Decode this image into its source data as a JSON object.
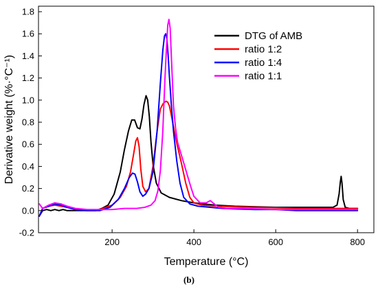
{
  "chart_data": {
    "type": "line",
    "title": "",
    "xlabel": "Temperature (°C)",
    "ylabel": "Derivative weight  (%·°C⁻¹)",
    "xlim": [
      20,
      840
    ],
    "ylim": [
      -0.2,
      1.85
    ],
    "xticks": [
      200,
      400,
      600,
      800
    ],
    "xtick_labels": [
      "200",
      "400",
      "600",
      "800"
    ],
    "yticks": [
      -0.2,
      0.0,
      0.2,
      0.4,
      0.6,
      0.8,
      1.0,
      1.2,
      1.4,
      1.6,
      1.8
    ],
    "ytick_labels": [
      "-0.2",
      "0.0",
      "0.2",
      "0.4",
      "0.6",
      "0.8",
      "1.0",
      "1.2",
      "1.4",
      "1.6",
      "1.8"
    ],
    "grid": false,
    "legend_position": "top-right",
    "caption": "(b)",
    "series": [
      {
        "name": "DTG of AMB",
        "color": "#000000",
        "x": [
          22,
          30,
          40,
          50,
          60,
          70,
          80,
          90,
          100,
          120,
          140,
          160,
          175,
          190,
          205,
          220,
          230,
          240,
          248,
          255,
          262,
          268,
          273,
          278,
          283,
          287,
          291,
          295,
          300,
          308,
          320,
          340,
          370,
          400,
          450,
          500,
          550,
          600,
          650,
          700,
          740,
          750,
          755,
          758,
          760,
          762,
          765,
          770,
          780,
          800
        ],
        "y": [
          -0.05,
          0.0,
          0.01,
          0.0,
          0.01,
          0.0,
          0.01,
          0.0,
          0.0,
          0.0,
          0.0,
          0.0,
          0.02,
          0.05,
          0.15,
          0.35,
          0.55,
          0.72,
          0.82,
          0.82,
          0.75,
          0.74,
          0.83,
          0.96,
          1.04,
          1.0,
          0.85,
          0.62,
          0.42,
          0.25,
          0.16,
          0.12,
          0.09,
          0.07,
          0.05,
          0.04,
          0.035,
          0.03,
          0.03,
          0.03,
          0.03,
          0.05,
          0.15,
          0.26,
          0.31,
          0.25,
          0.1,
          0.03,
          0.02,
          0.02
        ]
      },
      {
        "name": "ratio 1:2",
        "color": "#ff0000",
        "x": [
          22,
          30,
          45,
          60,
          75,
          90,
          110,
          140,
          170,
          200,
          220,
          235,
          245,
          252,
          258,
          262,
          266,
          270,
          275,
          282,
          290,
          300,
          310,
          318,
          325,
          332,
          336,
          340,
          345,
          352,
          360,
          370,
          380,
          390,
          400,
          420,
          440,
          460,
          500,
          550,
          600,
          650,
          700,
          750,
          800
        ],
        "y": [
          -0.05,
          0.02,
          0.04,
          0.05,
          0.04,
          0.03,
          0.01,
          0.0,
          0.01,
          0.05,
          0.12,
          0.22,
          0.35,
          0.5,
          0.63,
          0.66,
          0.58,
          0.38,
          0.22,
          0.17,
          0.2,
          0.4,
          0.72,
          0.92,
          0.97,
          0.99,
          0.98,
          0.95,
          0.86,
          0.72,
          0.58,
          0.42,
          0.25,
          0.12,
          0.07,
          0.05,
          0.045,
          0.04,
          0.035,
          0.03,
          0.025,
          0.02,
          0.02,
          0.02,
          0.02
        ]
      },
      {
        "name": "ratio 1:4",
        "color": "#0000ff",
        "x": [
          22,
          30,
          45,
          60,
          75,
          90,
          110,
          140,
          170,
          195,
          215,
          230,
          242,
          250,
          256,
          262,
          268,
          275,
          282,
          290,
          300,
          310,
          318,
          324,
          328,
          331,
          334,
          337,
          340,
          345,
          350,
          358,
          366,
          375,
          390,
          410,
          440,
          470,
          500,
          550,
          600,
          650,
          700,
          750,
          800
        ],
        "y": [
          -0.05,
          0.02,
          0.04,
          0.06,
          0.05,
          0.03,
          0.01,
          0.0,
          0.0,
          0.03,
          0.1,
          0.2,
          0.3,
          0.34,
          0.33,
          0.26,
          0.17,
          0.13,
          0.15,
          0.2,
          0.35,
          0.72,
          1.15,
          1.45,
          1.58,
          1.6,
          1.55,
          1.4,
          1.22,
          0.95,
          0.72,
          0.45,
          0.25,
          0.12,
          0.06,
          0.04,
          0.03,
          0.02,
          0.015,
          0.01,
          0.01,
          0.0,
          0.0,
          0.0,
          0.0
        ]
      },
      {
        "name": "ratio 1:1",
        "color": "#ff00ff",
        "x": [
          22,
          30,
          45,
          60,
          75,
          90,
          110,
          140,
          170,
          200,
          230,
          260,
          280,
          295,
          305,
          312,
          318,
          324,
          329,
          333,
          336,
          339,
          342,
          346,
          350,
          355,
          360,
          368,
          376,
          384,
          392,
          400,
          415,
          430,
          440,
          450,
          460,
          480,
          520,
          600,
          700,
          800
        ],
        "y": [
          0.06,
          0.02,
          0.05,
          0.07,
          0.06,
          0.04,
          0.02,
          0.01,
          0.01,
          0.01,
          0.02,
          0.02,
          0.03,
          0.05,
          0.09,
          0.18,
          0.36,
          0.72,
          1.18,
          1.48,
          1.68,
          1.73,
          1.65,
          1.3,
          0.95,
          0.75,
          0.62,
          0.52,
          0.42,
          0.32,
          0.22,
          0.13,
          0.07,
          0.07,
          0.09,
          0.06,
          0.03,
          0.02,
          0.02,
          0.01,
          0.01,
          0.01
        ]
      }
    ]
  }
}
